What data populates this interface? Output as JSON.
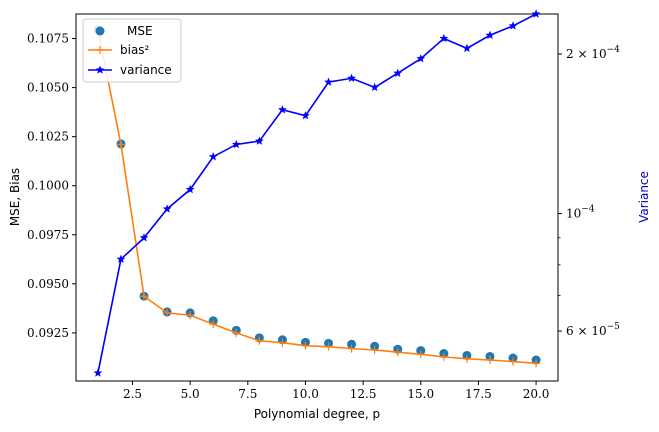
{
  "chart_data": {
    "type": "line",
    "xlabel": "Polynomial degree, p",
    "ylabel": "MSE, Bias",
    "y2label": "Variance",
    "xlim": [
      0.05,
      20.95
    ],
    "ylim": [
      0.09005,
      0.10875
    ],
    "y2lim": [
      4.83e-05,
      0.000238
    ],
    "y2scale": "log",
    "grid": false,
    "legend_position": "upper-left",
    "x_ticks": [
      2.5,
      5.0,
      7.5,
      10.0,
      12.5,
      15.0,
      17.5,
      20.0
    ],
    "x_tick_labels": [
      "2.5",
      "5.0",
      "7.5",
      "10.0",
      "12.5",
      "15.0",
      "17.5",
      "20.0"
    ],
    "y_ticks": [
      0.0925,
      0.095,
      0.0975,
      0.1,
      0.1025,
      0.105,
      0.1075
    ],
    "y_tick_labels": [
      "0.0925",
      "0.0950",
      "0.0975",
      "0.1000",
      "0.1025",
      "0.1050",
      "0.1075"
    ],
    "y2_ticks": [
      6e-05,
      0.0001,
      0.0002
    ],
    "y2_minor_ticks": [
      7e-05,
      8e-05,
      9e-05
    ],
    "x": [
      1,
      2,
      3,
      4,
      5,
      6,
      7,
      8,
      9,
      10,
      11,
      12,
      13,
      14,
      15,
      16,
      17,
      18,
      19,
      20
    ],
    "series": [
      {
        "name": "MSE",
        "axis": "left",
        "style": "scatter",
        "color": "#1f77b4",
        "values": [
          0.10795,
          0.10213,
          0.09437,
          0.09357,
          0.09352,
          0.09312,
          0.09263,
          0.09225,
          0.09215,
          0.09202,
          0.09197,
          0.09192,
          0.09182,
          0.09167,
          0.0916,
          0.09145,
          0.09135,
          0.0913,
          0.09122,
          0.09112
        ]
      },
      {
        "name": "bias²",
        "axis": "left",
        "style": "line",
        "marker": "+",
        "color": "#ff7f0e",
        "values": [
          0.10795,
          0.1021,
          0.09437,
          0.09352,
          0.0934,
          0.09295,
          0.0925,
          0.0921,
          0.092,
          0.09185,
          0.0918,
          0.0917,
          0.09163,
          0.09152,
          0.09141,
          0.09128,
          0.09118,
          0.09112,
          0.09104,
          0.09095
        ]
      },
      {
        "name": "variance",
        "axis": "right",
        "style": "line",
        "marker": "*",
        "color": "#0000ff",
        "values": [
          5e-05,
          8.2e-05,
          9e-05,
          0.000102,
          0.000111,
          0.000128,
          0.000135,
          0.000137,
          0.000157,
          0.000153,
          0.000177,
          0.00018,
          0.000173,
          0.000184,
          0.000196,
          0.000214,
          0.000205,
          0.000217,
          0.000226,
          0.000238
        ]
      }
    ]
  },
  "colors": {
    "mse": "#1f77b4",
    "bias": "#ff7f0e",
    "variance": "#0000ff",
    "y2label": "#0000cc"
  }
}
